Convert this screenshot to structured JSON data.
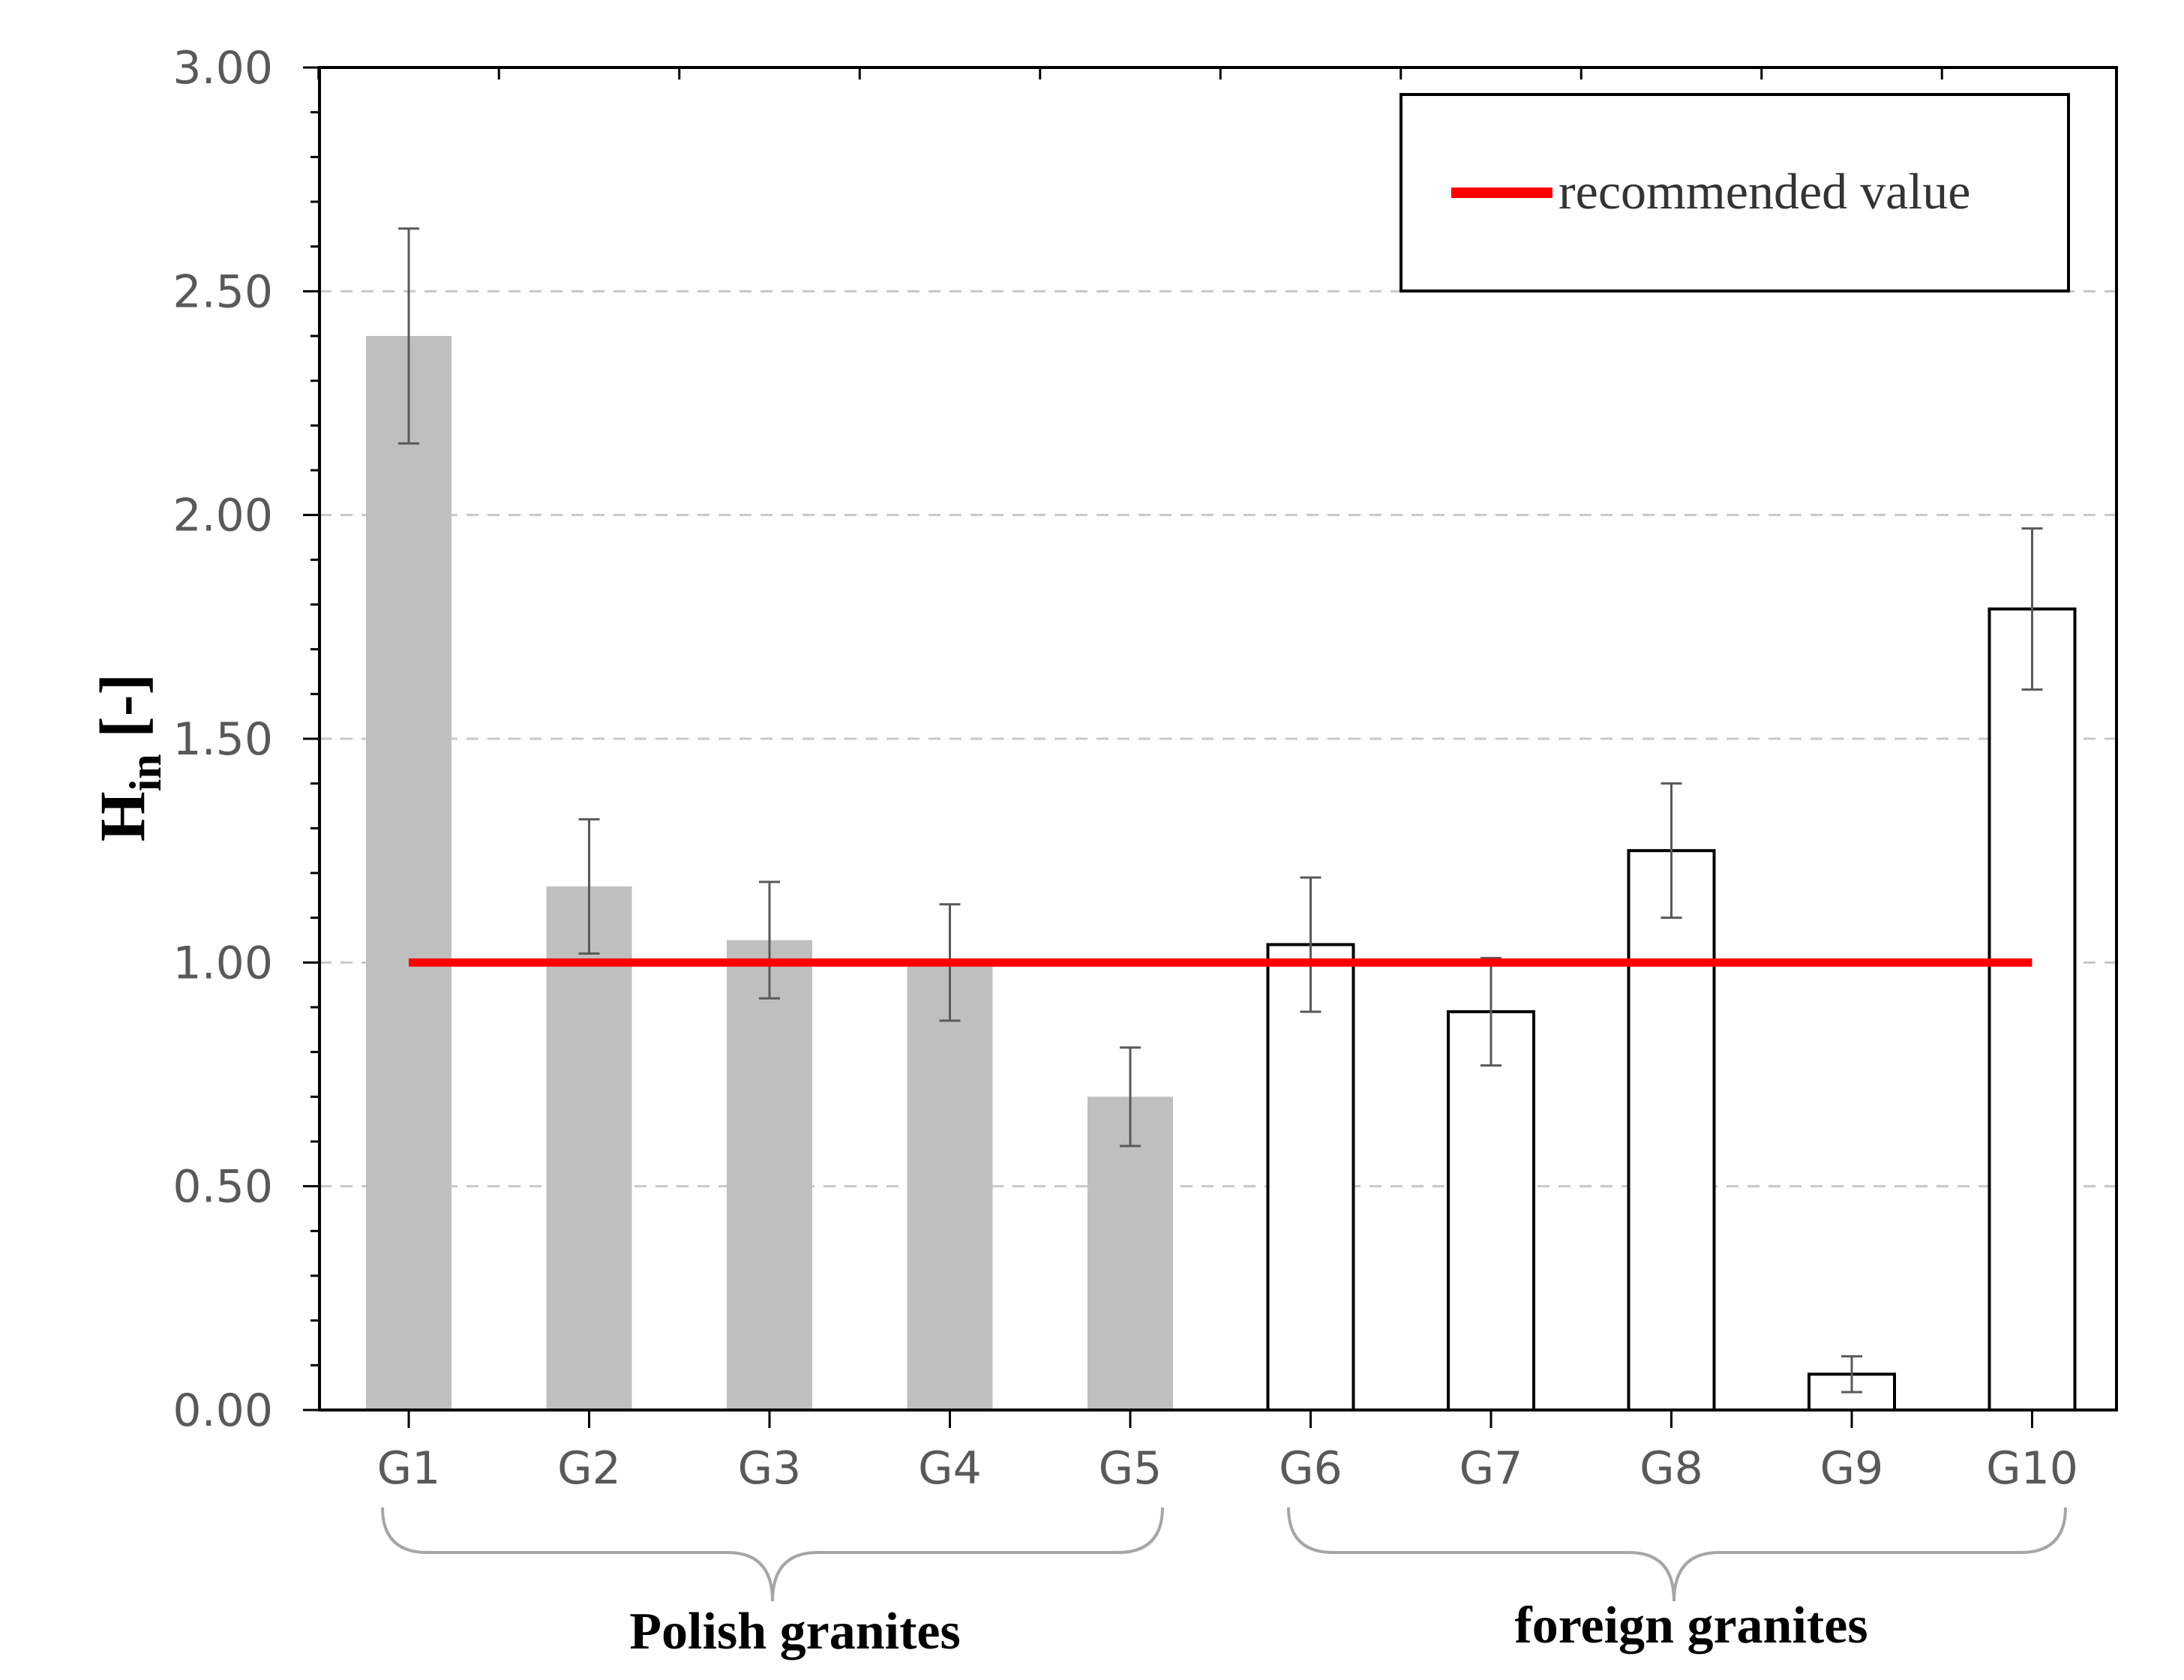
{
  "chart_data": {
    "type": "bar",
    "ylabel_main": "H",
    "ylabel_sub": "in",
    "ylabel_unit": " [-]",
    "ylim": [
      0,
      3
    ],
    "yticks": [
      "0.00",
      "0.50",
      "1.00",
      "1.50",
      "2.00",
      "2.50",
      "3.00"
    ],
    "grid": "horizontal-dashed",
    "categories": [
      "G1",
      "G2",
      "G3",
      "G4",
      "G5",
      "G6",
      "G7",
      "G8",
      "G9",
      "G10"
    ],
    "values": [
      2.4,
      1.17,
      1.05,
      1.0,
      0.7,
      1.04,
      0.89,
      1.25,
      0.08,
      1.79
    ],
    "errors": [
      0.24,
      0.15,
      0.13,
      0.13,
      0.11,
      0.15,
      0.12,
      0.15,
      0.04,
      0.18
    ],
    "groups": [
      {
        "label": "Polish granites",
        "categories": [
          "G1",
          "G2",
          "G3",
          "G4",
          "G5"
        ],
        "style": "filled-gray",
        "color": "#bfbfbf"
      },
      {
        "label": "foreign granites",
        "categories": [
          "G6",
          "G7",
          "G8",
          "G9",
          "G10"
        ],
        "style": "outline",
        "color": "#000000"
      }
    ],
    "reference_line": {
      "name": "recommended value",
      "value": 1.0,
      "color": "#ff0000"
    },
    "legend": {
      "position": "top-right",
      "entries": [
        "recommended value"
      ]
    }
  }
}
